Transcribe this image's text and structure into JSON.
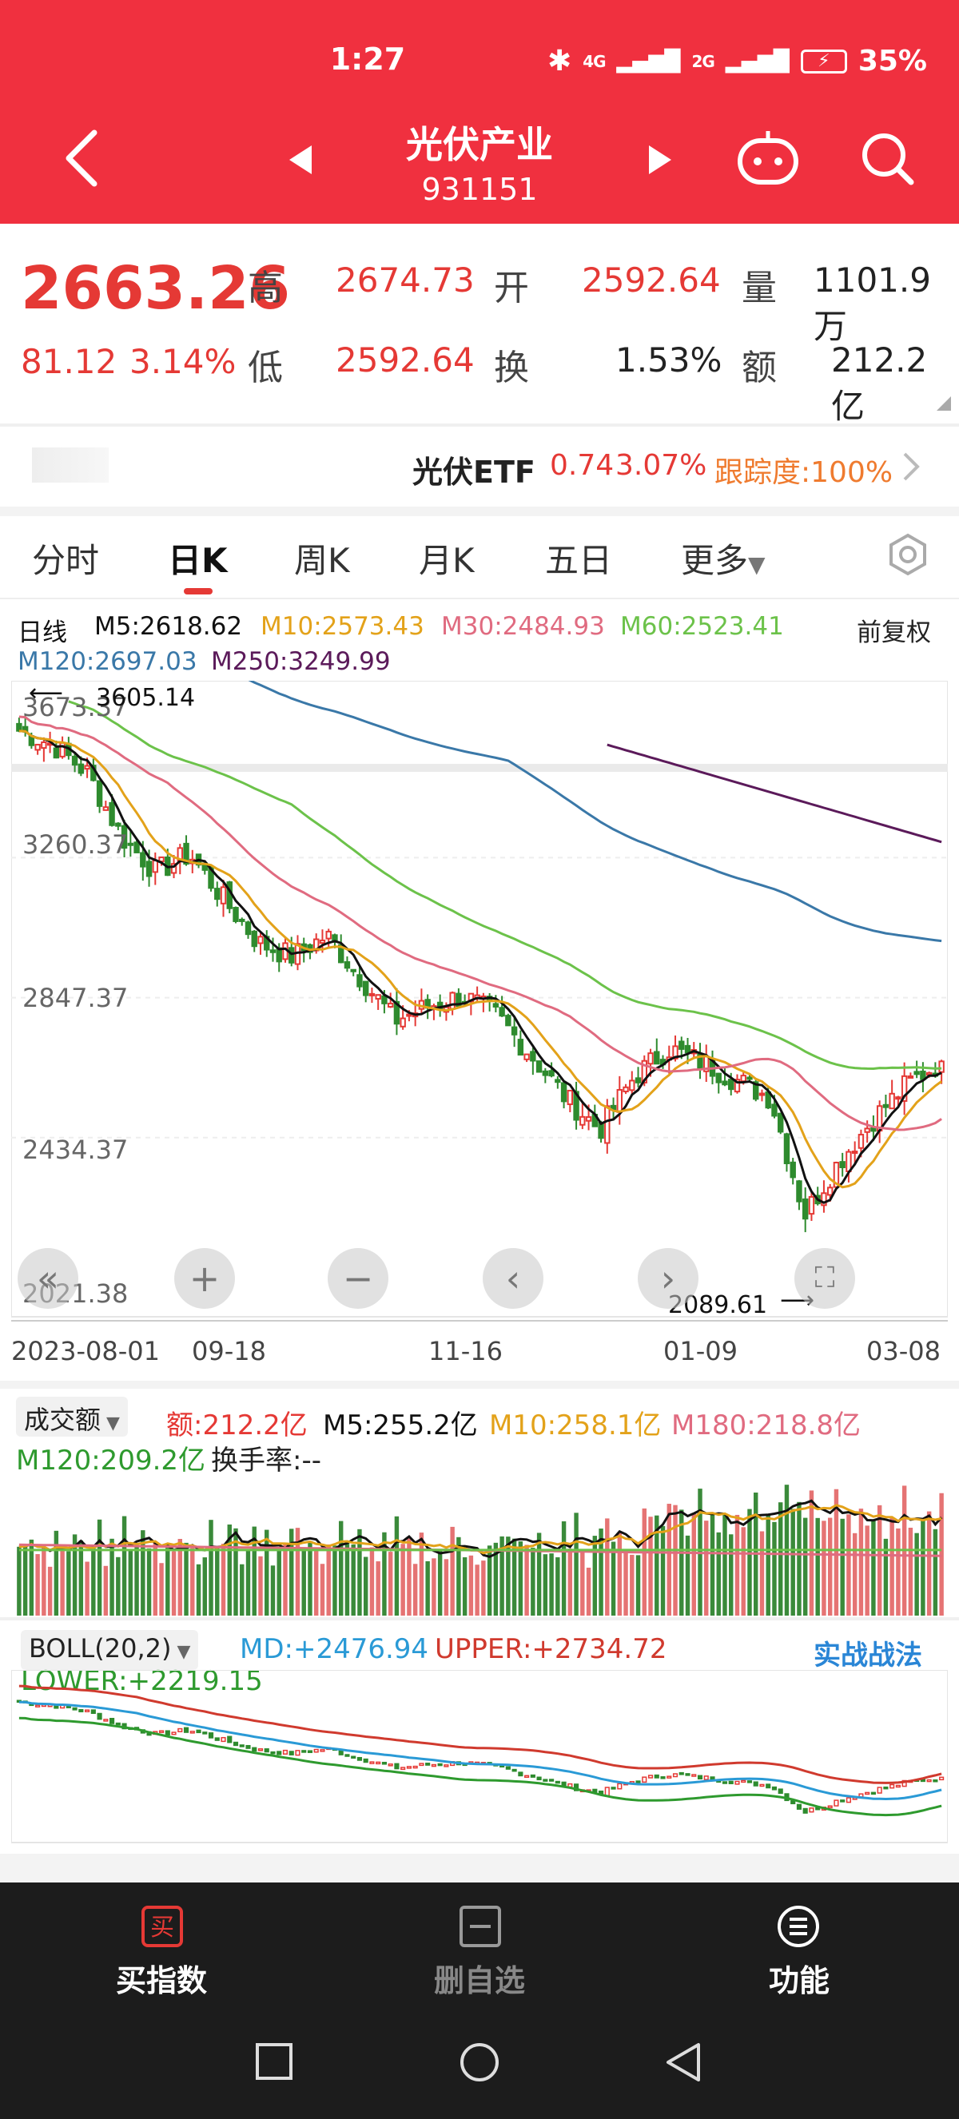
{
  "status_bar": {
    "time": "1:27",
    "network": "4G",
    "network2": "2G",
    "battery": "35%"
  },
  "header": {
    "title": "光伏产业",
    "code": "931151"
  },
  "quote": {
    "price": "2663.26",
    "change": "81.12",
    "change_pct": "3.14%",
    "high_label": "高",
    "high": "2674.73",
    "open_label": "开",
    "open": "2592.64",
    "vol_label": "量",
    "vol": "1101.9万",
    "low_label": "低",
    "low": "2592.64",
    "turnover_label": "换",
    "turnover": "1.53%",
    "amount_label": "额",
    "amount": "212.2亿"
  },
  "etf": {
    "name": "光伏ETF",
    "price": "0.74",
    "pct": "3.07%",
    "tracking": "跟踪度:100%"
  },
  "tabs": [
    "分时",
    "日K",
    "周K",
    "月K",
    "五日",
    "更多"
  ],
  "active_tab": "日K",
  "kline": {
    "period": "日线",
    "m5": "M5:2618.62",
    "m10": "M10:2573.43",
    "m30": "M30:2484.93",
    "m60": "M60:2523.41",
    "m120": "M120:2697.03",
    "m250": "M250:3249.99",
    "adjust": "前复权",
    "high_mark": "3605.14",
    "low_mark": "2089.61",
    "y_labels": [
      "3673.37",
      "3260.37",
      "2847.37",
      "2434.37",
      "2021.38"
    ],
    "x_labels": [
      "2023-08-01",
      "09-18",
      "11-16",
      "01-09",
      "03-08"
    ]
  },
  "volume": {
    "selector": "成交额",
    "amount": "额:212.2亿",
    "m5": "M5:255.2亿",
    "m10": "M10:258.1亿",
    "m180": "M180:218.8亿",
    "m120": "M120:209.2亿",
    "turnover": "换手率:--"
  },
  "boll": {
    "selector": "BOLL(20,2)",
    "md": "MD:+2476.94",
    "upper": "UPPER:+2734.72",
    "lower": "LOWER:+2219.15",
    "tactics": "实战战法"
  },
  "bottom_nav": {
    "buy": "买指数",
    "remove": "删自选",
    "func": "功能"
  },
  "chart_data": {
    "type": "candlestick",
    "x_range": [
      "2023-08-01",
      "2024-03-08"
    ],
    "ylim": [
      2021.38,
      3673.37
    ],
    "close_approx": [
      3600,
      3560,
      3480,
      3300,
      3200,
      3250,
      3120,
      3000,
      2960,
      3020,
      2900,
      2780,
      2820,
      2850,
      2790,
      2680,
      2560,
      2470,
      2620,
      2700,
      2660,
      2610,
      2560,
      2230,
      2380,
      2500,
      2600,
      2663.26
    ],
    "colors": {
      "up": "#e53935",
      "down": "#2e8b2e",
      "m5": "#111111",
      "m10": "#e3a21a",
      "m30": "#e06b80",
      "m60": "#6cc24a",
      "m120": "#3a78a8",
      "m250": "#5b1a5a"
    }
  }
}
